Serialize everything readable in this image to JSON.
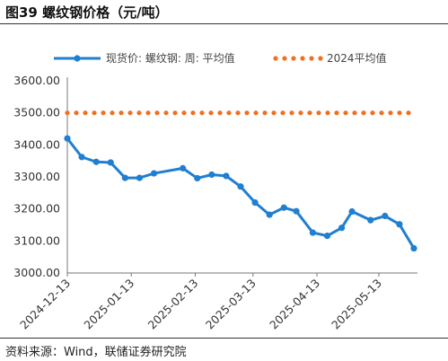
{
  "figure": {
    "title": "图39 螺纹钢价格（元/吨）",
    "source": "资料来源：Wind，联储证券研究院"
  },
  "chart_data": {
    "type": "line",
    "ylim": [
      3000,
      3600
    ],
    "y_ticks": [
      "3600.00",
      "3500.00",
      "3400.00",
      "3300.00",
      "3200.00",
      "3100.00",
      "3000.00"
    ],
    "x_ticks": [
      "2024-12-13",
      "2025-01-13",
      "2025-02-13",
      "2025-03-13",
      "2025-04-13",
      "2025-05-13"
    ],
    "grid": false,
    "legend_position": "top",
    "series": [
      {
        "name": "现货价: 螺纹钢: 周: 平均值",
        "style": "solid-line-markers",
        "color": "#1f7fd0",
        "x": [
          "2024-12-13",
          "2024-12-20",
          "2024-12-27",
          "2025-01-03",
          "2025-01-10",
          "2025-01-17",
          "2025-01-24",
          "2025-02-07",
          "2025-02-14",
          "2025-02-21",
          "2025-02-28",
          "2025-03-07",
          "2025-03-14",
          "2025-03-21",
          "2025-03-28",
          "2025-04-03",
          "2025-04-11",
          "2025-04-18",
          "2025-04-25",
          "2025-04-30",
          "2025-05-09",
          "2025-05-16",
          "2025-05-23",
          "2025-05-30"
        ],
        "values": [
          3420,
          3362,
          3347,
          3345,
          3297,
          3297,
          3311,
          3327,
          3296,
          3307,
          3303,
          3270,
          3220,
          3182,
          3204,
          3193,
          3126,
          3116,
          3141,
          3192,
          3165,
          3178,
          3152,
          3077
        ]
      },
      {
        "name": "2024平均值",
        "style": "dotted",
        "color": "#f07020",
        "x": [
          "2024-12-13",
          "2025-05-30"
        ],
        "values": [
          3500,
          3500
        ]
      }
    ]
  }
}
